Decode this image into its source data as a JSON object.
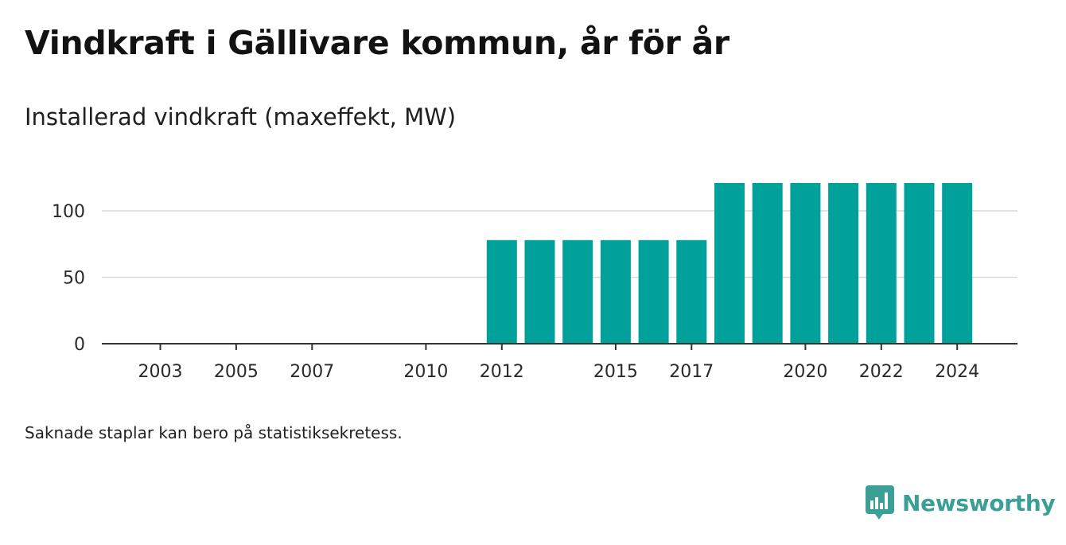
{
  "title": "Vindkraft i Gällivare kommun, år för år",
  "subtitle": "Installerad vindkraft (maxeffekt, MW)",
  "note": "Saknade staplar kan bero på statistiksekretess.",
  "brand": {
    "name": "Newsworthy",
    "logo_icon": "newsworthy-logo-icon",
    "color": "#3a9f95"
  },
  "colors": {
    "bar": "#00a19a",
    "grid": "#d9d9d9",
    "axis": "#333333"
  },
  "chart_data": {
    "type": "bar",
    "title": "Vindkraft i Gällivare kommun, år för år",
    "subtitle": "Installerad vindkraft (maxeffekt, MW)",
    "xlabel": "",
    "ylabel": "",
    "categories": [
      2003,
      2004,
      2005,
      2006,
      2007,
      2008,
      2009,
      2010,
      2011,
      2012,
      2013,
      2014,
      2015,
      2016,
      2017,
      2018,
      2019,
      2020,
      2021,
      2022,
      2023,
      2024
    ],
    "values": [
      0,
      0,
      0,
      0,
      0,
      0,
      0,
      0,
      0,
      78,
      78,
      78,
      78,
      78,
      78,
      121,
      121,
      121,
      121,
      121,
      121,
      121
    ],
    "x_tick_labels": [
      "2003",
      "2005",
      "2007",
      "2010",
      "2012",
      "2015",
      "2017",
      "2020",
      "2022",
      "2024"
    ],
    "y_ticks": [
      0,
      50,
      100
    ],
    "ylim": [
      0,
      125
    ],
    "grid": "horizontal",
    "legend": "none"
  }
}
